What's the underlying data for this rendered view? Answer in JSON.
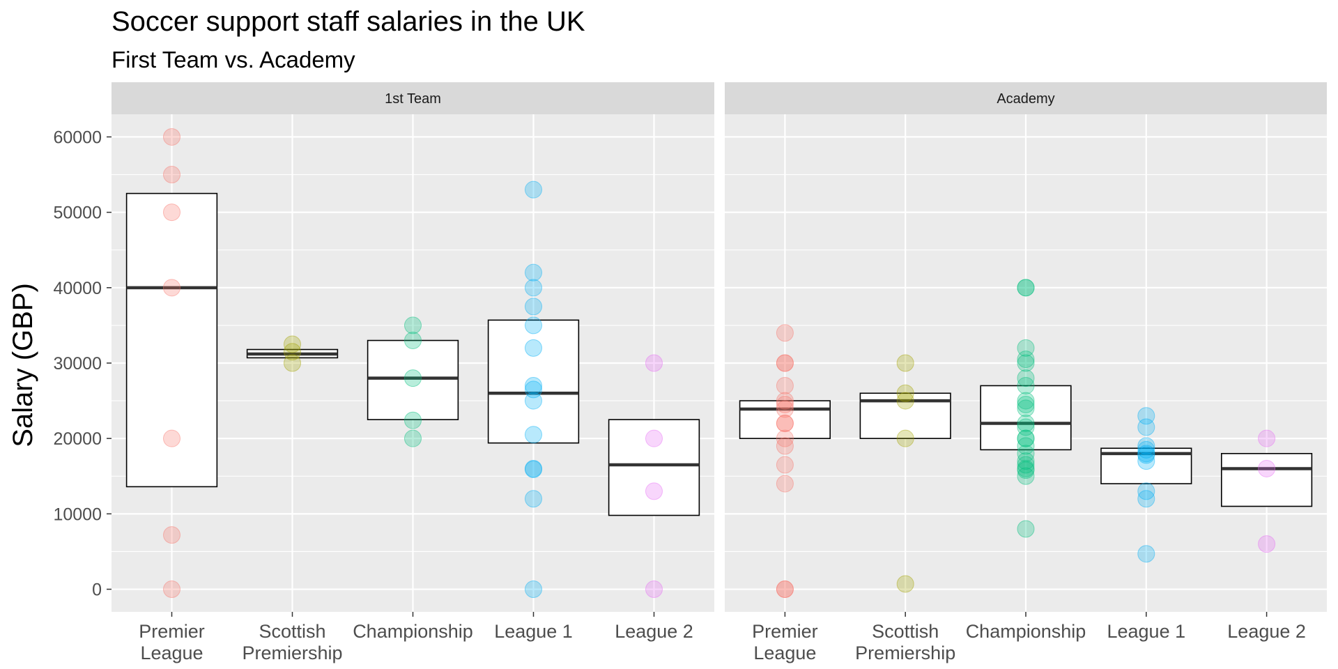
{
  "chart_data": {
    "type": "boxplot_with_points",
    "title": "Soccer support staff salaries in the UK",
    "subtitle": "First Team vs. Academy",
    "ylabel": "Salary (GBP)",
    "xlabel": "",
    "ylim": [
      -3000,
      63000
    ],
    "yticks": [
      0,
      10000,
      20000,
      30000,
      40000,
      50000,
      60000
    ],
    "ytick_labels": [
      "0",
      "10000",
      "20000",
      "30000",
      "40000",
      "50000",
      "60000"
    ],
    "grid": true,
    "legend": "none",
    "categories": [
      {
        "key": "pl",
        "label_lines": [
          "Premier",
          "League"
        ],
        "color": "#F8766D"
      },
      {
        "key": "sp",
        "label_lines": [
          "Scottish",
          "Premiership"
        ],
        "color": "#A3A500"
      },
      {
        "key": "ch",
        "label_lines": [
          "Championship"
        ],
        "color": "#00BF7D"
      },
      {
        "key": "l1",
        "label_lines": [
          "League 1"
        ],
        "color": "#00B0F6"
      },
      {
        "key": "l2",
        "label_lines": [
          "League 2"
        ],
        "color": "#E76BF3"
      }
    ],
    "panels": [
      {
        "name": "1st Team",
        "groups": [
          {
            "category": "pl",
            "box": {
              "q1": 13600,
              "median": 40000,
              "q3": 52500
            },
            "points": [
              60000,
              55000,
              50000,
              40000,
              20000,
              7200,
              0
            ]
          },
          {
            "category": "sp",
            "box": {
              "q1": 30700,
              "median": 31200,
              "q3": 31800
            },
            "points": [
              32500,
              31500,
              30000
            ]
          },
          {
            "category": "ch",
            "box": {
              "q1": 22500,
              "median": 28000,
              "q3": 33000
            },
            "points": [
              35000,
              33000,
              28000,
              22400,
              20000
            ]
          },
          {
            "category": "l1",
            "box": {
              "q1": 19400,
              "median": 26000,
              "q3": 35700
            },
            "points": [
              53000,
              42000,
              40000,
              37500,
              35000,
              32000,
              27000,
              26500,
              25000,
              20500,
              16000,
              15900,
              12000,
              0
            ]
          },
          {
            "category": "l2",
            "box": {
              "q1": 9800,
              "median": 16500,
              "q3": 22500
            },
            "points": [
              30000,
              20000,
              13000,
              0
            ]
          }
        ]
      },
      {
        "name": "Academy",
        "groups": [
          {
            "category": "pl",
            "box": {
              "q1": 20000,
              "median": 23900,
              "q3": 25000
            },
            "points": [
              34000,
              30000,
              30000,
              27000,
              25000,
              24500,
              23900,
              22000,
              22000,
              20000,
              19000,
              16500,
              14000,
              0,
              0
            ]
          },
          {
            "category": "sp",
            "box": {
              "q1": 20000,
              "median": 25000,
              "q3": 26000
            },
            "points": [
              30000,
              26000,
              25000,
              20000,
              700
            ]
          },
          {
            "category": "ch",
            "box": {
              "q1": 18500,
              "median": 22000,
              "q3": 27000
            },
            "points": [
              40000,
              40000,
              32000,
              30500,
              30000,
              28000,
              27000,
              25000,
              24500,
              24000,
              22000,
              21500,
              20000,
              20000,
              19000,
              18000,
              17000,
              16500,
              16000,
              15800,
              15000,
              8000
            ]
          },
          {
            "category": "l1",
            "box": {
              "q1": 14000,
              "median": 18000,
              "q3": 18700
            },
            "points": [
              23000,
              21500,
              19000,
              18500,
              18000,
              17800,
              17000,
              13000,
              12000,
              4700
            ]
          },
          {
            "category": "l2",
            "box": {
              "q1": 11000,
              "median": 16000,
              "q3": 18000
            },
            "points": [
              20000,
              16000,
              6000
            ]
          }
        ]
      }
    ]
  }
}
